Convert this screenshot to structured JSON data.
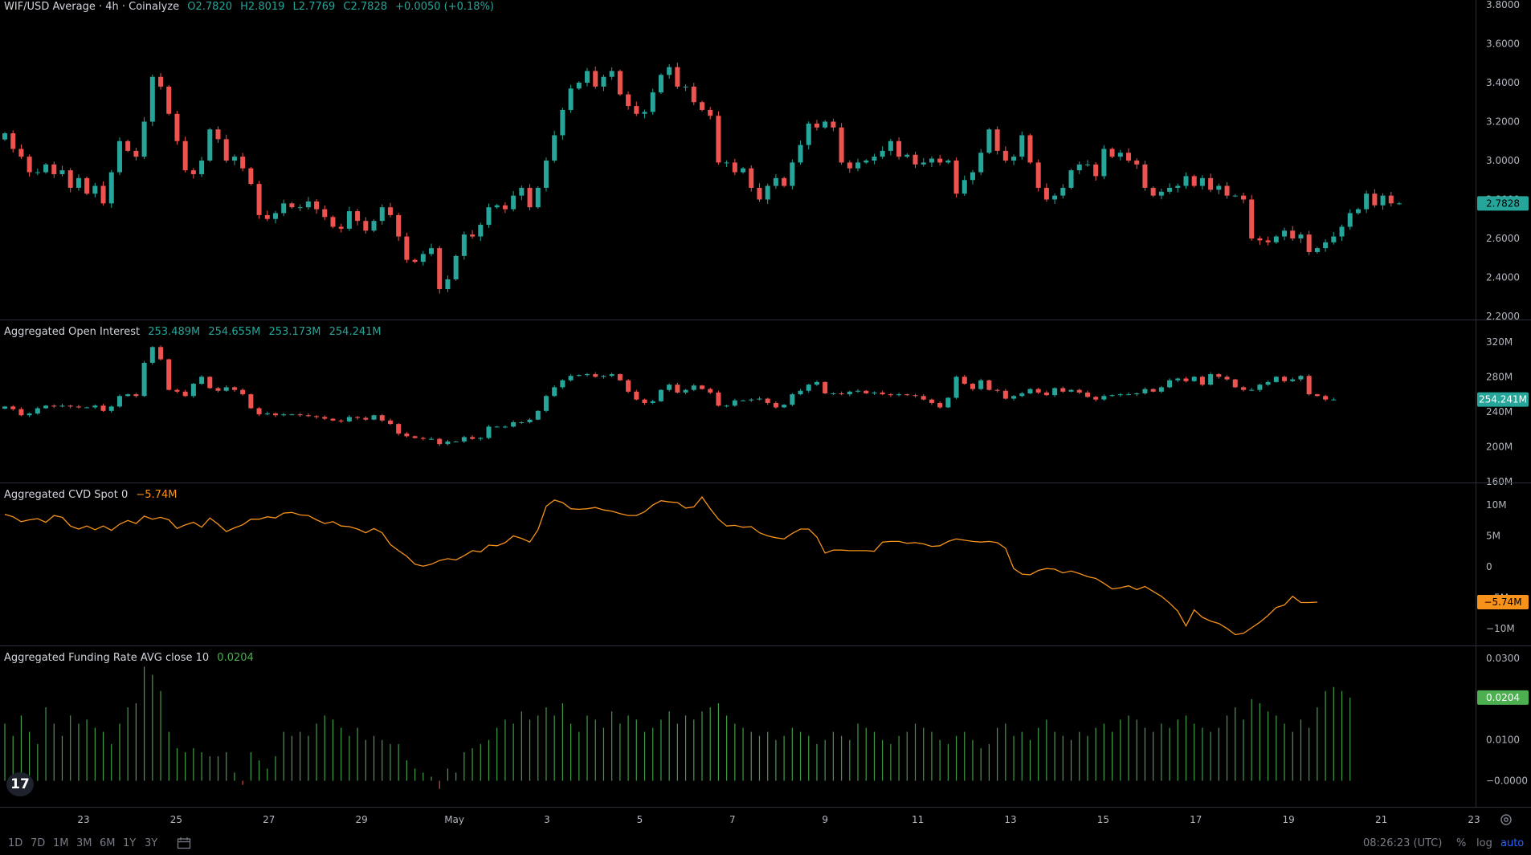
{
  "panes": {
    "price": {
      "title": "WIF/USD Average · 4h · Coinalyze",
      "ohlc": {
        "o": "O2.7820",
        "h": "H2.8019",
        "l": "L2.7769",
        "c": "C2.7828",
        "chg": "+0.0050 (+0.18%)"
      },
      "last_label": "2.7828",
      "axis_ticks": [
        "3.8000",
        "3.6000",
        "3.4000",
        "3.2000",
        "3.0000",
        "2.8000",
        "2.6000",
        "2.4000",
        "2.2000"
      ]
    },
    "oi": {
      "title": "Aggregated Open Interest",
      "values": [
        "253.489M",
        "254.655M",
        "253.173M",
        "254.241M"
      ],
      "last_label": "254.241M",
      "axis_ticks": [
        "320M",
        "280M",
        "240M",
        "200M",
        "160M"
      ]
    },
    "cvd": {
      "title": "Aggregated CVD Spot 0",
      "value": "−5.74M",
      "last_label": "−5.74M",
      "axis_ticks": [
        "10M",
        "5M",
        "0",
        "−5M",
        "−10M"
      ]
    },
    "funding": {
      "title": "Aggregated Funding Rate AVG close 10",
      "value": "0.0204",
      "last_label": "0.0204",
      "axis_ticks": [
        "0.0300",
        "0.0200",
        "0.0100",
        "−0.0000"
      ]
    }
  },
  "x_axis": [
    "23",
    "25",
    "27",
    "29",
    "May",
    "3",
    "5",
    "7",
    "9",
    "11",
    "13",
    "15",
    "17",
    "19",
    "21",
    "23"
  ],
  "bottom_bar": {
    "ranges": [
      "1D",
      "7D",
      "1M",
      "3M",
      "6M",
      "1Y",
      "3Y"
    ],
    "clock": "08:26:23 (UTC)",
    "percent": "%",
    "log": "log",
    "auto": "auto"
  },
  "colors": {
    "up": "#26a69a",
    "down": "#ef5350",
    "cvd": "#f7931a",
    "funding": "#4caf50",
    "grid": "#2a2e39"
  },
  "chart_data": [
    {
      "type": "candlestick",
      "title": "WIF/USD Average · 4h · Coinalyze",
      "ylim": [
        2.2,
        3.8
      ],
      "close": [
        3.14,
        3.06,
        3.02,
        2.94,
        2.94,
        2.98,
        2.93,
        2.95,
        2.86,
        2.91,
        2.83,
        2.87,
        2.78,
        2.94,
        3.1,
        3.05,
        3.02,
        3.2,
        3.43,
        3.38,
        3.24,
        3.1,
        2.95,
        2.93,
        3.0,
        3.16,
        3.11,
        3.0,
        3.02,
        2.96,
        2.88,
        2.72,
        2.7,
        2.73,
        2.78,
        2.76,
        2.76,
        2.79,
        2.75,
        2.71,
        2.66,
        2.65,
        2.74,
        2.69,
        2.64,
        2.69,
        2.76,
        2.72,
        2.61,
        2.49,
        2.48,
        2.52,
        2.55,
        2.34,
        2.39,
        2.51,
        2.62,
        2.61,
        2.67,
        2.76,
        2.77,
        2.75,
        2.82,
        2.86,
        2.76,
        2.86,
        3.0,
        3.13,
        3.26,
        3.37,
        3.4,
        3.46,
        3.38,
        3.43,
        3.46,
        3.34,
        3.28,
        3.24,
        3.25,
        3.35,
        3.44,
        3.48,
        3.38,
        3.38,
        3.3,
        3.26,
        3.23,
        2.99,
        2.99,
        2.94,
        2.96,
        2.86,
        2.8,
        2.87,
        2.91,
        2.87,
        2.99,
        3.08,
        3.19,
        3.17,
        3.2,
        3.17,
        2.99,
        2.96,
        2.99,
        3.0,
        3.02,
        3.05,
        3.1,
        3.02,
        3.03,
        2.98,
        2.99,
        3.01,
        2.99,
        3.0,
        2.83,
        2.9,
        2.94,
        3.04,
        3.16,
        3.05,
        3.0,
        3.02,
        3.13,
        2.99,
        2.86,
        2.8,
        2.82,
        2.86,
        2.95,
        2.98,
        2.98,
        2.92,
        3.06,
        3.02,
        3.04,
        3.0,
        2.98,
        2.86,
        2.82,
        2.84,
        2.86,
        2.87,
        2.92,
        2.87,
        2.91,
        2.85,
        2.87,
        2.82,
        2.82,
        2.8,
        2.6,
        2.59,
        2.58,
        2.61,
        2.64,
        2.6,
        2.62,
        2.53,
        2.55,
        2.58,
        2.61,
        2.66,
        2.73,
        2.75,
        2.83,
        2.77,
        2.82,
        2.78,
        2.78
      ]
    },
    {
      "type": "candlestick",
      "title": "Aggregated Open Interest",
      "ylim": [
        160,
        340
      ],
      "close": [
        246,
        243,
        236,
        238,
        244,
        247,
        246,
        247,
        246,
        245,
        245,
        247,
        241,
        246,
        258,
        260,
        258,
        296,
        314,
        300,
        265,
        263,
        258,
        272,
        280,
        267,
        264,
        268,
        265,
        260,
        244,
        237,
        238,
        236,
        237,
        237,
        236,
        235,
        234,
        232,
        230,
        229,
        234,
        233,
        231,
        236,
        230,
        226,
        215,
        212,
        210,
        209,
        209,
        203,
        206,
        206,
        211,
        209,
        210,
        223,
        223,
        223,
        228,
        228,
        231,
        241,
        258,
        268,
        276,
        281,
        282,
        283,
        280,
        281,
        283,
        276,
        263,
        254,
        250,
        252,
        265,
        271,
        262,
        265,
        270,
        266,
        262,
        247,
        247,
        253,
        253,
        254,
        255,
        250,
        245,
        248,
        260,
        264,
        271,
        274,
        261,
        261,
        260,
        263,
        264,
        261,
        262,
        260,
        259,
        260,
        259,
        258,
        254,
        250,
        245,
        256,
        280,
        272,
        266,
        276,
        265,
        264,
        255,
        258,
        261,
        266,
        262,
        259,
        267,
        263,
        265,
        262,
        257,
        254,
        258,
        259,
        260,
        260,
        261,
        266,
        263,
        268,
        276,
        278,
        275,
        280,
        271,
        283,
        280,
        277,
        268,
        265,
        265,
        271,
        274,
        280,
        275,
        277,
        281,
        260,
        258,
        254,
        254
      ]
    },
    {
      "type": "line",
      "title": "Aggregated CVD Spot 0",
      "ylim": [
        -12.5,
        13
      ],
      "values": [
        8.5,
        8.1,
        7.3,
        7.6,
        7.8,
        7.2,
        8.3,
        8.0,
        6.6,
        6.1,
        6.6,
        6.0,
        6.6,
        5.9,
        6.9,
        7.5,
        7.0,
        8.2,
        7.7,
        8.0,
        7.6,
        6.2,
        6.8,
        7.2,
        6.4,
        7.9,
        6.9,
        5.7,
        6.3,
        6.8,
        7.7,
        7.7,
        8.1,
        7.9,
        8.7,
        8.8,
        8.4,
        8.3,
        7.6,
        7.0,
        7.3,
        6.6,
        6.5,
        6.1,
        5.5,
        6.2,
        5.5,
        3.6,
        2.6,
        1.7,
        0.4,
        0.1,
        0.4,
        1.0,
        1.3,
        1.1,
        1.8,
        2.6,
        2.4,
        3.5,
        3.4,
        3.9,
        5.0,
        4.6,
        4.0,
        6.0,
        9.8,
        10.8,
        10.4,
        9.4,
        9.3,
        9.4,
        9.6,
        9.2,
        9.0,
        8.6,
        8.3,
        8.3,
        8.9,
        10.0,
        10.7,
        10.5,
        10.4,
        9.5,
        9.7,
        11.3,
        9.4,
        7.7,
        6.6,
        6.7,
        6.4,
        6.5,
        5.5,
        5.0,
        4.7,
        4.5,
        5.4,
        6.1,
        6.1,
        4.8,
        2.2,
        2.7,
        2.7,
        2.6,
        2.6,
        2.6,
        2.5,
        4.0,
        4.1,
        4.1,
        3.8,
        3.9,
        3.7,
        3.3,
        3.4,
        4.1,
        4.5,
        4.3,
        4.1,
        4.0,
        4.1,
        3.9,
        3.0,
        -0.3,
        -1.2,
        -1.3,
        -0.6,
        -0.3,
        -0.4,
        -1.0,
        -0.7,
        -1.1,
        -1.6,
        -1.9,
        -2.7,
        -3.6,
        -3.4,
        -3.1,
        -3.7,
        -3.2,
        -4.0,
        -4.8,
        -5.9,
        -7.2,
        -9.6,
        -7.0,
        -8.2,
        -8.8,
        -9.2,
        -10.0,
        -11.0,
        -10.8,
        -9.9,
        -9.0,
        -7.9,
        -6.6,
        -6.2,
        -4.8,
        -5.8,
        -5.8,
        -5.74
      ]
    },
    {
      "type": "bar",
      "title": "Aggregated Funding Rate AVG close 10",
      "ylim": [
        -0.006,
        0.032
      ],
      "values": [
        0.014,
        0.011,
        0.016,
        0.012,
        0.009,
        0.018,
        0.014,
        0.011,
        0.016,
        0.014,
        0.015,
        0.013,
        0.012,
        0.009,
        0.014,
        0.018,
        0.019,
        0.028,
        0.026,
        0.022,
        0.012,
        0.008,
        0.007,
        0.008,
        0.007,
        0.006,
        0.006,
        0.007,
        0.002,
        -0.001,
        0.007,
        0.005,
        0.003,
        0.006,
        0.012,
        0.011,
        0.012,
        0.011,
        0.014,
        0.016,
        0.015,
        0.013,
        0.011,
        0.013,
        0.01,
        0.011,
        0.01,
        0.009,
        0.009,
        0.005,
        0.003,
        0.002,
        0.001,
        -0.002,
        0.003,
        0.002,
        0.007,
        0.008,
        0.009,
        0.01,
        0.013,
        0.015,
        0.014,
        0.017,
        0.015,
        0.016,
        0.018,
        0.016,
        0.019,
        0.014,
        0.012,
        0.016,
        0.015,
        0.013,
        0.017,
        0.014,
        0.016,
        0.015,
        0.012,
        0.013,
        0.015,
        0.017,
        0.014,
        0.016,
        0.015,
        0.017,
        0.018,
        0.019,
        0.016,
        0.014,
        0.013,
        0.012,
        0.011,
        0.012,
        0.01,
        0.011,
        0.013,
        0.012,
        0.011,
        0.009,
        0.01,
        0.012,
        0.011,
        0.01,
        0.014,
        0.013,
        0.012,
        0.01,
        0.009,
        0.011,
        0.012,
        0.014,
        0.013,
        0.012,
        0.01,
        0.009,
        0.011,
        0.012,
        0.01,
        0.008,
        0.009,
        0.013,
        0.014,
        0.011,
        0.012,
        0.01,
        0.013,
        0.015,
        0.012,
        0.011,
        0.01,
        0.012,
        0.011,
        0.013,
        0.014,
        0.012,
        0.015,
        0.016,
        0.015,
        0.013,
        0.012,
        0.014,
        0.013,
        0.015,
        0.016,
        0.014,
        0.013,
        0.012,
        0.013,
        0.016,
        0.018,
        0.015,
        0.02,
        0.019,
        0.017,
        0.016,
        0.014,
        0.012,
        0.015,
        0.013,
        0.018,
        0.022,
        0.023,
        0.022,
        0.0204
      ]
    }
  ]
}
